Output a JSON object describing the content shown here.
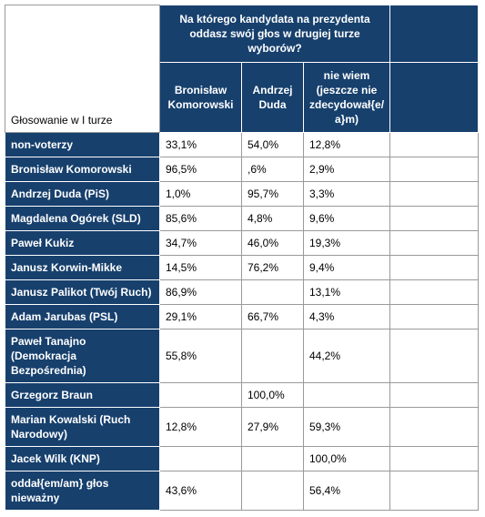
{
  "header": {
    "question": "Na którego kandydata na prezydenta\noddasz swój głos w drugiej turze\nwyborów?",
    "corner": "Głosowanie w I turze",
    "columns": [
      "Bronisław\nKomorowski",
      "Andrzej\nDuda",
      "nie wiem\n(jeszcze nie\nzdecydował{e/\na}m)"
    ]
  },
  "table": {
    "rows": [
      [
        "non-voterzy",
        "33,1%",
        "54,0%",
        "12,8%"
      ],
      [
        "Bronisław Komorowski",
        "96,5%",
        ",6%",
        "2,9%"
      ],
      [
        "Andrzej Duda (PiS)",
        "1,0%",
        "95,7%",
        "3,3%"
      ],
      [
        "Magdalena Ogórek (SLD)",
        "85,6%",
        "4,8%",
        "9,6%"
      ],
      [
        "Paweł Kukiz",
        "34,7%",
        "46,0%",
        "19,3%"
      ],
      [
        "Janusz Korwin-Mikke",
        "14,5%",
        "76,2%",
        "9,4%"
      ],
      [
        "Janusz Palikot (Twój Ruch)",
        "86,9%",
        null,
        "13,1%"
      ],
      [
        "Adam Jarubas (PSL)",
        "29,1%",
        "66,7%",
        "4,3%"
      ],
      [
        "Paweł Tanajno\n(Demokracja\nBezpośrednia)",
        "55,8%",
        null,
        "44,2%"
      ],
      [
        "Grzegorz Braun",
        null,
        "100,0%",
        null
      ],
      [
        "Marian Kowalski (Ruch\nNarodowy)",
        "12,8%",
        "27,9%",
        "59,3%"
      ],
      [
        "Jacek Wilk (KNP)",
        null,
        null,
        "100,0%"
      ],
      [
        "oddał{em/am} głos\nnieważny",
        "43,6%",
        null,
        "56,4%"
      ]
    ]
  }
}
